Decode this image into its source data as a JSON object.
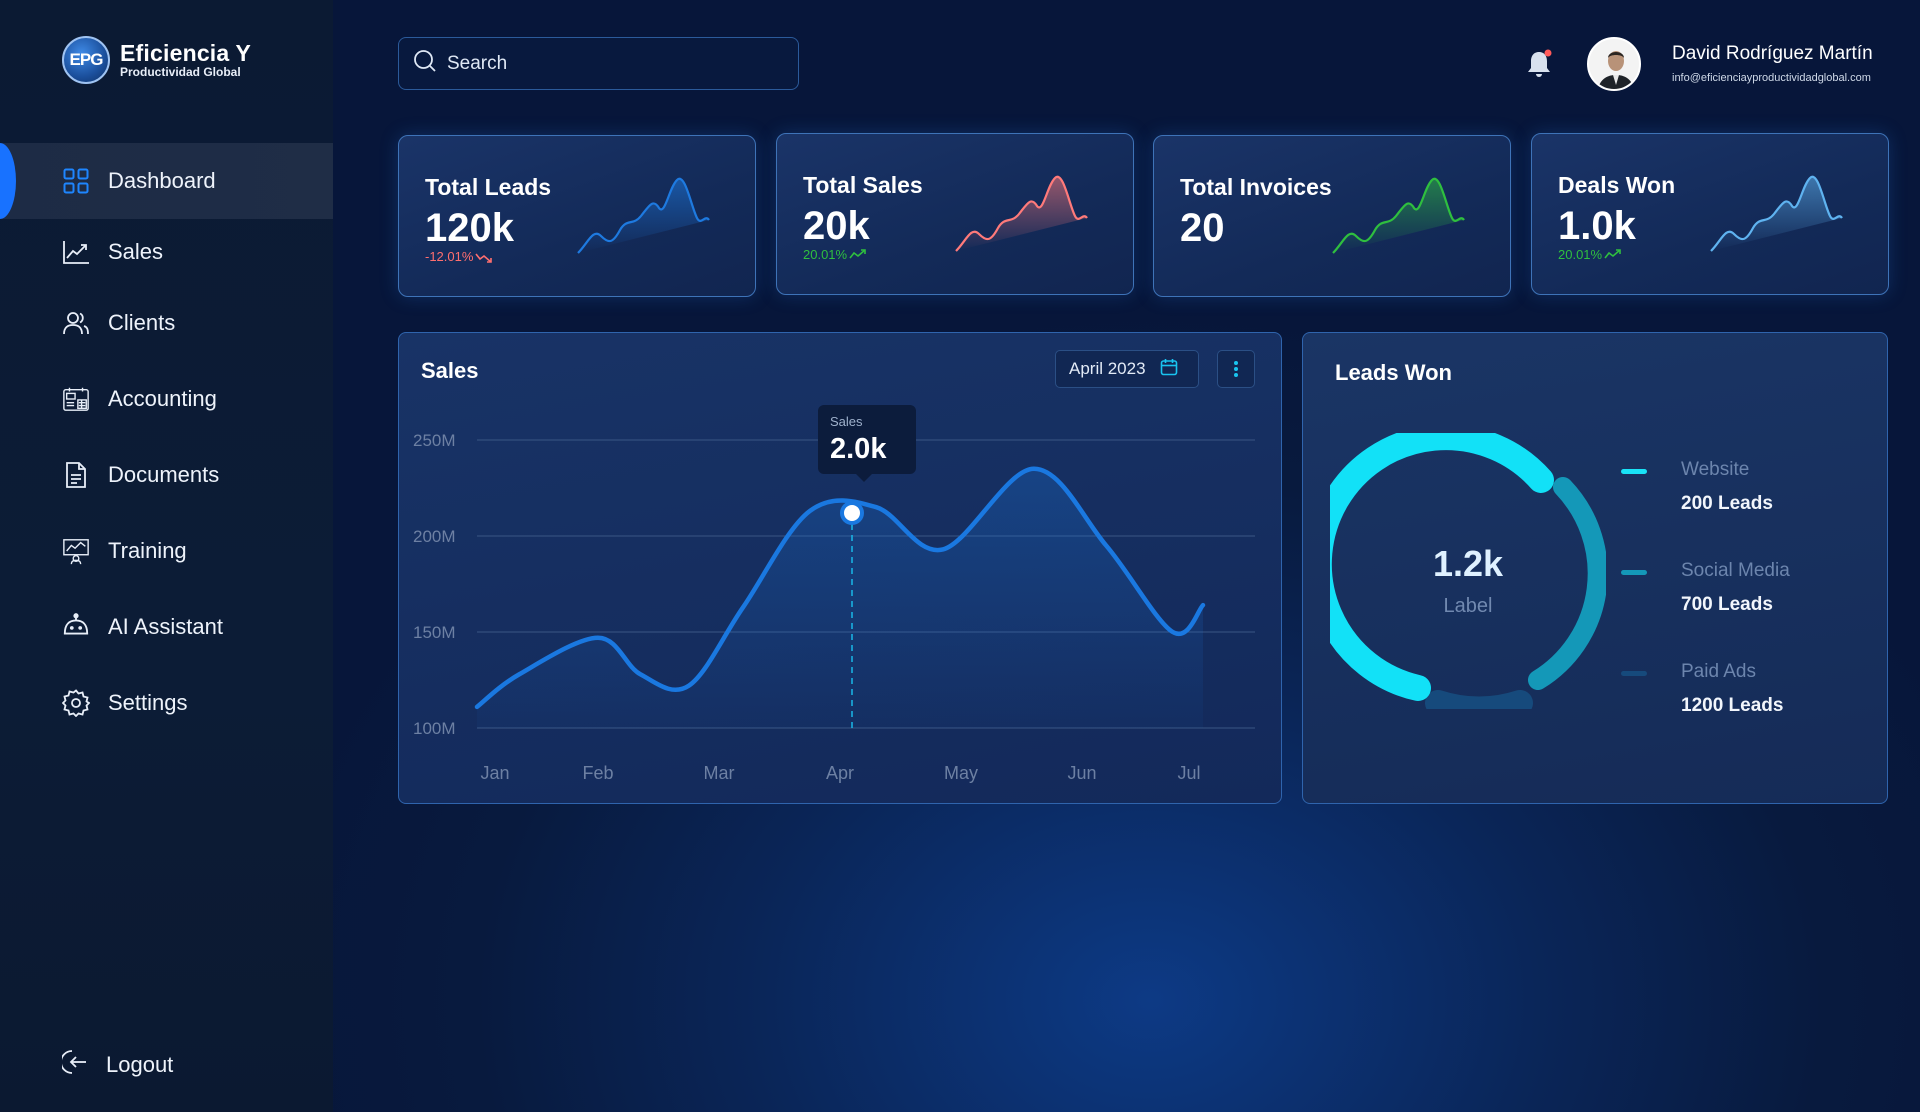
{
  "app": {
    "logo_mark": "EPG",
    "logo_line1": "Eficiencia Y",
    "logo_line2": "Productividad Global"
  },
  "sidebar": {
    "items": [
      {
        "label": "Dashboard",
        "icon": "grid-icon",
        "active": true
      },
      {
        "label": "Sales",
        "icon": "trend-chart-icon"
      },
      {
        "label": "Clients",
        "icon": "users-icon"
      },
      {
        "label": "Accounting",
        "icon": "accounting-icon"
      },
      {
        "label": "Documents",
        "icon": "document-icon"
      },
      {
        "label": "Training",
        "icon": "training-icon"
      },
      {
        "label": "AI Assistant",
        "icon": "robot-icon"
      },
      {
        "label": "Settings",
        "icon": "gear-icon"
      }
    ],
    "logout_label": "Logout"
  },
  "header": {
    "search_placeholder": "Search",
    "user_name": "David Rodríguez Martín",
    "user_email": "info@eficienciayproductividadglobal.com",
    "notification_dot_color": "#ff5a5a"
  },
  "kpis": [
    {
      "title": "Total Leads",
      "value": "120k",
      "delta": "-12.01%",
      "direction": "down",
      "color": "#1e7ae0"
    },
    {
      "title": "Total Sales",
      "value": "20k",
      "delta": "20.01%",
      "direction": "up",
      "color": "#ff7a7a"
    },
    {
      "title": "Total Invoices",
      "value": "20",
      "delta": "",
      "direction": "up",
      "color": "#2fbf3f"
    },
    {
      "title": "Deals Won",
      "value": "1.0k",
      "delta": "20.01%",
      "direction": "up",
      "color": "#5fb3f0"
    }
  ],
  "sales": {
    "title": "Sales",
    "date_label": "April 2023",
    "tooltip_label": "Sales",
    "tooltip_value": "2.0k"
  },
  "chart_data": {
    "type": "line",
    "title": "Sales",
    "categories": [
      "Jan",
      "Feb",
      "Mar",
      "Apr",
      "May",
      "Jun",
      "Jul"
    ],
    "y_ticks": [
      "250M",
      "200M",
      "150M",
      "100M"
    ],
    "ylim": [
      100,
      250
    ],
    "grid": true,
    "x": [
      0,
      0.35,
      1,
      1.35,
      1.75,
      2.2,
      2.75,
      3.3,
      3.85,
      4.6,
      5.2,
      5.75,
      6.0
    ],
    "y": [
      111,
      128,
      147,
      128,
      122,
      163,
      213,
      215,
      193,
      235,
      195,
      150,
      164
    ],
    "highlight": {
      "category": "Apr",
      "label": "Sales",
      "value": "2.0k"
    },
    "line_color": "#1a78e0"
  },
  "leads": {
    "title": "Leads Won",
    "center_value": "1.2k",
    "center_label": "Label",
    "legend": [
      {
        "name": "Website",
        "value": "200 Leads",
        "color": "#19e3f7"
      },
      {
        "name": "Social Media",
        "value": "700 Leads",
        "color": "#1498b8"
      },
      {
        "name": "Paid Ads",
        "value": "1200 Leads",
        "color": "#164a7c"
      }
    ]
  }
}
